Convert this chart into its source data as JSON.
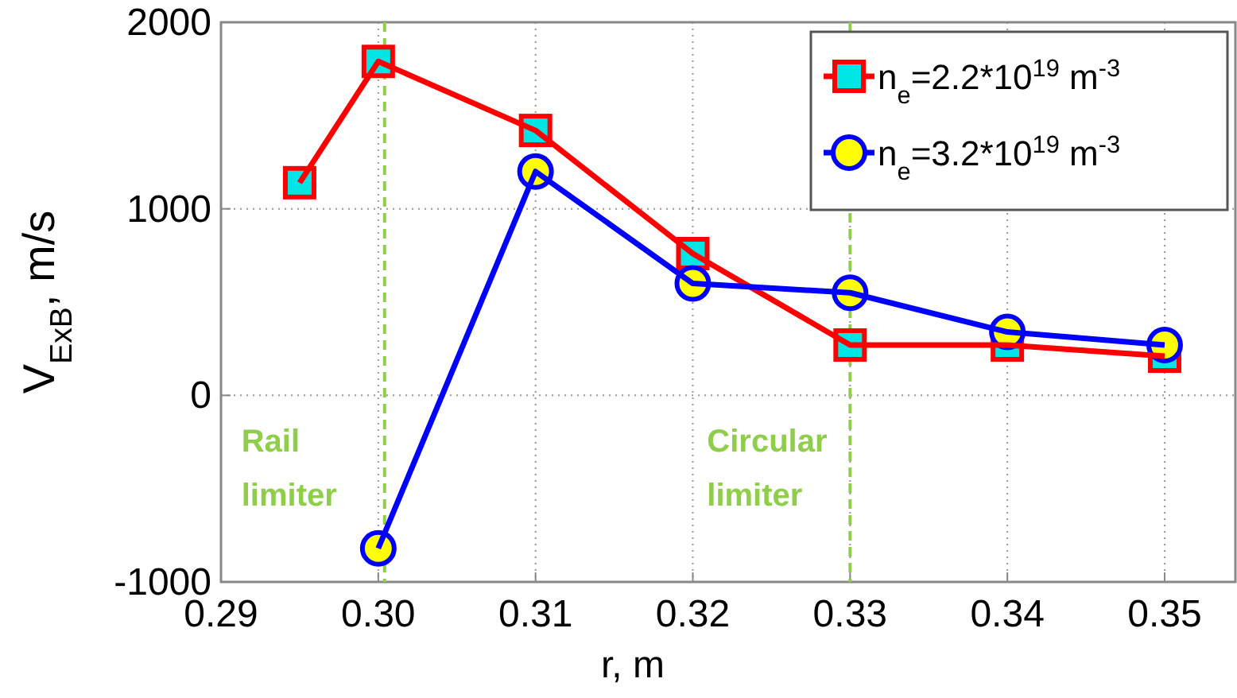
{
  "chart_data": {
    "type": "line",
    "xlabel": "r, m",
    "ylabel": "V$_{ExB}$, m/s",
    "xlim": [
      0.29,
      0.3545
    ],
    "xticks": [
      {
        "value": 0.29,
        "label": "0.29"
      },
      {
        "value": 0.3,
        "label": "0.30"
      },
      {
        "value": 0.31,
        "label": "0.31"
      },
      {
        "value": 0.32,
        "label": "0.32"
      },
      {
        "value": 0.33,
        "label": "0.33"
      },
      {
        "value": 0.34,
        "label": "0.34"
      },
      {
        "value": 0.35,
        "label": "0.35"
      }
    ],
    "ylim": [
      -1000,
      2000
    ],
    "yticks": [
      -1000,
      0,
      1000,
      2000
    ],
    "grid": true,
    "legend": "top right",
    "line_style": "solid",
    "series": [
      {
        "name": "n$_{e}$=2.2*10$^{19}$ m$^{-3}$",
        "color": "#ff0000",
        "marker": "square",
        "x": [
          0.295,
          0.3,
          0.31,
          0.32,
          0.33,
          0.34,
          0.35
        ],
        "values": [
          1140,
          1790,
          1420,
          760,
          270,
          270,
          210
        ]
      },
      {
        "name": "n$_{e}$=3.2*10$^{19}$ m$^{-3}$",
        "color": "#0000ff",
        "marker": "circle",
        "x": [
          0.3,
          0.31,
          0.32,
          0.33,
          0.34,
          0.35
        ],
        "values": [
          -820,
          1200,
          600,
          550,
          340,
          270
        ]
      }
    ],
    "ref_lines": [
      {
        "axis": "x",
        "value": 0.3004,
        "label": "Rail limiter",
        "color": "#8fce4a",
        "line_style": "dashed"
      },
      {
        "axis": "x",
        "value": 0.33,
        "label": "Circular limiter",
        "color": "#8fce4a",
        "line_style": "dashed"
      }
    ]
  }
}
